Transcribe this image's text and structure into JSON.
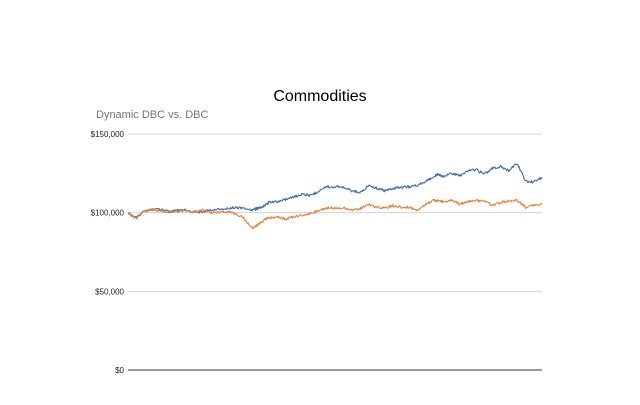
{
  "chart_data": {
    "type": "line",
    "title": "Commodities",
    "subtitle": "Dynamic DBC vs. DBC",
    "xlabel": "",
    "ylabel": "",
    "ylim": [
      0,
      150000
    ],
    "y_ticks": [
      "$0",
      "$50,000",
      "$100,000",
      "$150,000"
    ],
    "y_tick_values": [
      0,
      50000,
      100000,
      150000
    ],
    "grid": true,
    "legend": "none",
    "x": [
      0,
      2,
      4,
      6,
      8,
      10,
      12,
      14,
      16,
      18,
      20,
      22,
      24,
      26,
      28,
      30,
      31,
      32,
      33,
      34,
      36,
      38,
      40,
      42,
      44,
      46,
      48,
      50,
      52,
      54,
      56,
      58,
      60,
      62,
      64,
      66,
      68,
      70,
      72,
      74,
      75,
      76,
      78,
      80,
      82,
      84,
      86,
      88,
      90,
      92,
      94,
      96,
      98,
      100
    ],
    "series": [
      {
        "color": "#3d6db5",
        "values": [
          100000,
          97000,
          101000,
          102000,
          102000,
          100500,
          101500,
          101500,
          100500,
          100500,
          101500,
          102000,
          102500,
          103500,
          102500,
          101500,
          102500,
          103000,
          104500,
          106500,
          107000,
          108500,
          110000,
          111500,
          111000,
          113500,
          116500,
          116500,
          116500,
          114000,
          112500,
          117000,
          115500,
          114000,
          115500,
          116000,
          116500,
          117500,
          120000,
          123000,
          124500,
          123000,
          125000,
          123500,
          126500,
          127500,
          124500,
          128000,
          129500,
          126500,
          131500,
          120000,
          119500,
          122500
        ]
      },
      {
        "color": "#e8823a",
        "values": [
          99500,
          96000,
          101500,
          102000,
          101000,
          100500,
          100500,
          101000,
          100500,
          101500,
          100000,
          100500,
          100500,
          99500,
          96500,
          90000,
          91500,
          93500,
          95500,
          96500,
          97500,
          96000,
          97500,
          98500,
          99500,
          101000,
          103000,
          103000,
          103000,
          101500,
          102500,
          105000,
          103500,
          103000,
          104500,
          103500,
          103500,
          101500,
          105500,
          108000,
          107500,
          107000,
          108000,
          105500,
          107000,
          107500,
          108000,
          104500,
          106500,
          107500,
          108000,
          103500,
          104500,
          105500
        ]
      }
    ]
  }
}
